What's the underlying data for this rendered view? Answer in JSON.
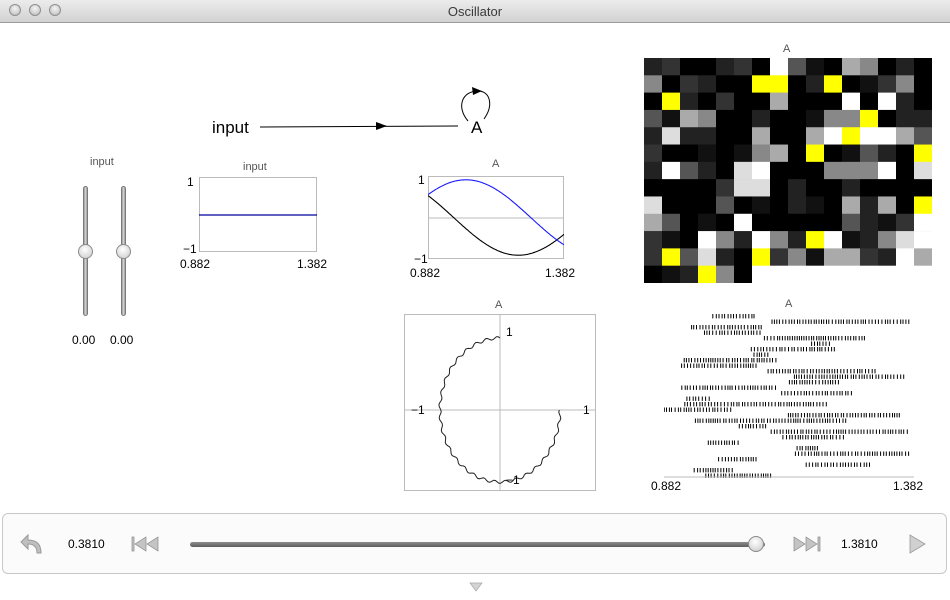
{
  "window": {
    "title": "Oscillator"
  },
  "network": {
    "input_label": "input",
    "node_label": "A"
  },
  "input_sliders": {
    "title": "input",
    "sliders": [
      {
        "value": 0.0,
        "display": "0.00"
      },
      {
        "value": 0.0,
        "display": "0.00"
      }
    ]
  },
  "input_plot": {
    "title": "input",
    "y_max": "1",
    "y_min": "−1",
    "x_min": "0.882",
    "x_max": "1.382",
    "color": "#00009a"
  },
  "a_value_plot": {
    "title": "A",
    "y_max": "1",
    "y_min": "−1",
    "x_min": "0.882",
    "x_max": "1.382",
    "series_colors": [
      "#000000",
      "#1a1aff"
    ]
  },
  "xy_plot": {
    "title": "A",
    "top": "1",
    "bottom": "−1",
    "left": "−1",
    "right": "1"
  },
  "grid_plot": {
    "title": "A",
    "highlight_color": "#ffff00"
  },
  "spike_plot": {
    "title": "A",
    "x_min": "0.882",
    "x_max": "1.382"
  },
  "controls": {
    "start_time": "0.3810",
    "end_time": "1.3810",
    "current_fraction": 0.985,
    "icons": [
      "undo-icon",
      "skip-back-icon",
      "skip-forward-icon",
      "play-icon"
    ]
  }
}
